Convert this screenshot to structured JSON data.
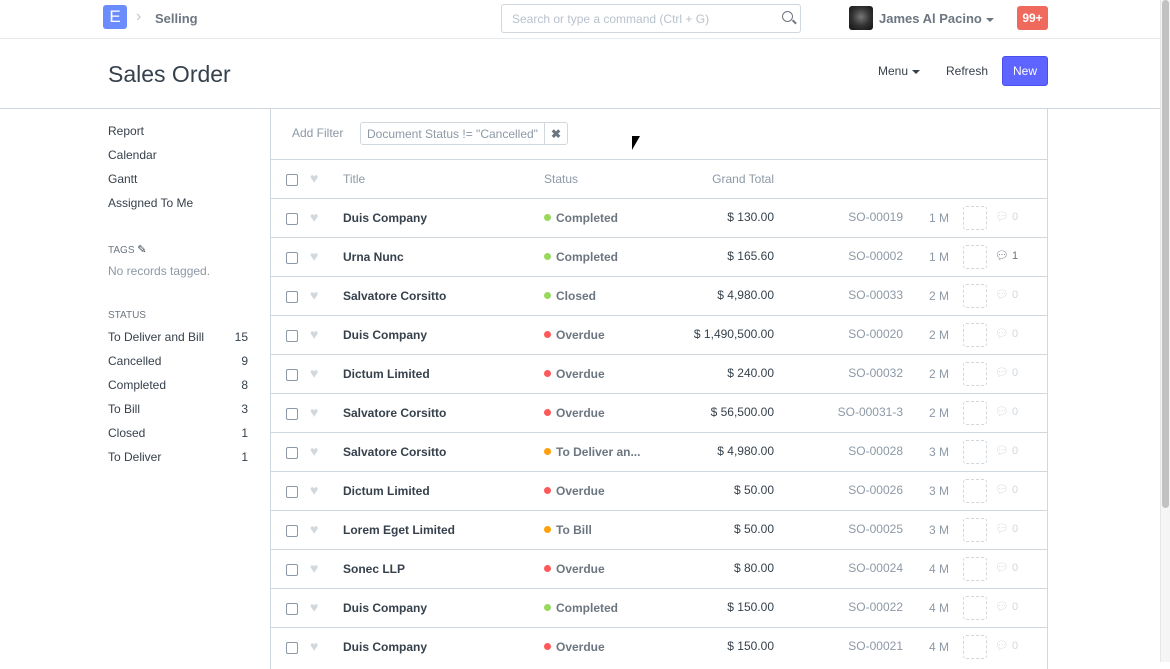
{
  "navbar": {
    "logo": "E",
    "breadcrumb": "Selling",
    "search_placeholder": "Search or type a command (Ctrl + G)",
    "user": "James Al Pacino",
    "notifications": "99+"
  },
  "page": {
    "title": "Sales Order",
    "menu": "Menu",
    "refresh": "Refresh",
    "new": "New"
  },
  "sidebar": {
    "links": [
      "Report",
      "Calendar",
      "Gantt",
      "Assigned To Me"
    ],
    "tags_label": "TAGS",
    "tags_empty": "No records tagged.",
    "status_label": "STATUS",
    "status": [
      {
        "label": "To Deliver and Bill",
        "count": "15"
      },
      {
        "label": "Cancelled",
        "count": "9"
      },
      {
        "label": "Completed",
        "count": "8"
      },
      {
        "label": "To Bill",
        "count": "3"
      },
      {
        "label": "Closed",
        "count": "1"
      },
      {
        "label": "To Deliver",
        "count": "1"
      }
    ]
  },
  "filters": {
    "add": "Add Filter",
    "active": "Document Status != \"Cancelled\""
  },
  "list": {
    "columns": {
      "title": "Title",
      "status": "Status",
      "grand_total": "Grand Total"
    },
    "status_colors": {
      "Completed": "#98d85b",
      "Closed": "#98d85b",
      "Overdue": "#ff5858",
      "To Deliver an...": "#ffa00a",
      "To Bill": "#ffa00a"
    },
    "rows": [
      {
        "title": "Duis Company",
        "status": "Completed",
        "total": "$ 130.00",
        "name": "SO-00019",
        "age": "1 M",
        "comments": "0"
      },
      {
        "title": "Urna Nunc",
        "status": "Completed",
        "total": "$ 165.60",
        "name": "SO-00002",
        "age": "1 M",
        "comments": "1"
      },
      {
        "title": "Salvatore Corsitto",
        "status": "Closed",
        "total": "$ 4,980.00",
        "name": "SO-00033",
        "age": "2 M",
        "comments": "0"
      },
      {
        "title": "Duis Company",
        "status": "Overdue",
        "total": "$ 1,490,500.00",
        "name": "SO-00020",
        "age": "2 M",
        "comments": "0"
      },
      {
        "title": "Dictum Limited",
        "status": "Overdue",
        "total": "$ 240.00",
        "name": "SO-00032",
        "age": "2 M",
        "comments": "0"
      },
      {
        "title": "Salvatore Corsitto",
        "status": "Overdue",
        "total": "$ 56,500.00",
        "name": "SO-00031-3",
        "age": "2 M",
        "comments": "0"
      },
      {
        "title": "Salvatore Corsitto",
        "status": "To Deliver an...",
        "total": "$ 4,980.00",
        "name": "SO-00028",
        "age": "3 M",
        "comments": "0"
      },
      {
        "title": "Dictum Limited",
        "status": "Overdue",
        "total": "$ 50.00",
        "name": "SO-00026",
        "age": "3 M",
        "comments": "0"
      },
      {
        "title": "Lorem Eget Limited",
        "status": "To Bill",
        "total": "$ 50.00",
        "name": "SO-00025",
        "age": "3 M",
        "comments": "0"
      },
      {
        "title": "Sonec LLP",
        "status": "Overdue",
        "total": "$ 80.00",
        "name": "SO-00024",
        "age": "4 M",
        "comments": "0"
      },
      {
        "title": "Duis Company",
        "status": "Completed",
        "total": "$ 150.00",
        "name": "SO-00022",
        "age": "4 M",
        "comments": "0"
      },
      {
        "title": "Duis Company",
        "status": "Overdue",
        "total": "$ 150.00",
        "name": "SO-00021",
        "age": "4 M",
        "comments": "0"
      }
    ]
  }
}
